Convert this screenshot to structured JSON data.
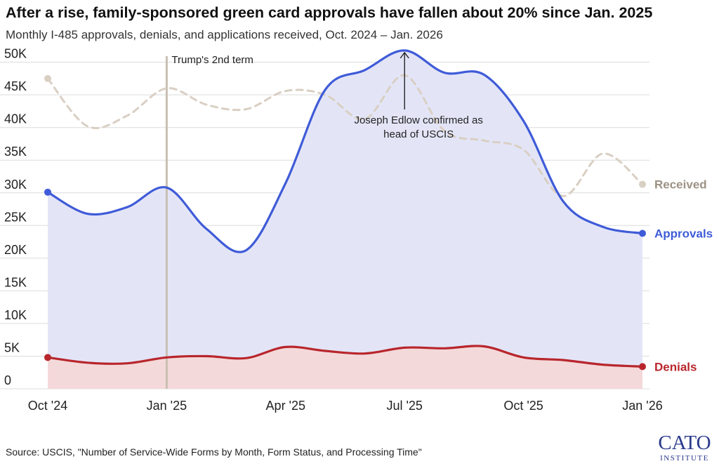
{
  "title": "After a rise, family-sponsored green card approvals have fallen about 20% since Jan. 2025",
  "subtitle": "Monthly I-485 approvals, denials, and applications received, Oct. 2024 – Jan. 2026",
  "source": "Source: USCIS, \"Number of Service-Wide Forms by Month, Form Status, and Processing Time\"",
  "logo": {
    "line1": "CATO",
    "line2": "INSTITUTE",
    "color": "#2b3a8c"
  },
  "chart_data": {
    "type": "line",
    "x": [
      "2024-10",
      "2024-11",
      "2024-12",
      "2025-01",
      "2025-02",
      "2025-03",
      "2025-04",
      "2025-05",
      "2025-06",
      "2025-07",
      "2025-08",
      "2025-09",
      "2025-10",
      "2025-11",
      "2025-12",
      "2026-01"
    ],
    "x_tick_labels": [
      "Oct '24",
      "Jan '25",
      "Apr '25",
      "Jul '25",
      "Oct '25",
      "Jan '26"
    ],
    "x_tick_values": [
      "2024-10",
      "2025-01",
      "2025-04",
      "2025-07",
      "2025-10",
      "2026-01"
    ],
    "y_tick_labels": [
      "0",
      "5K",
      "10K",
      "15K",
      "20K",
      "25K",
      "30K",
      "35K",
      "40K",
      "45K",
      "50K"
    ],
    "y_tick_values": [
      0,
      5000,
      10000,
      15000,
      20000,
      25000,
      30000,
      35000,
      40000,
      45000,
      50000
    ],
    "ylim": [
      0,
      52000
    ],
    "grid": true,
    "series": [
      {
        "name": "Received",
        "color": "#d9cfc3",
        "style": "dashed",
        "values": [
          47500,
          40200,
          41800,
          46000,
          43500,
          42800,
          45600,
          45000,
          41300,
          48000,
          39500,
          38000,
          36600,
          29500,
          36000,
          31300
        ]
      },
      {
        "name": "Approvals",
        "color": "#3f5bd8",
        "style": "solid",
        "fill": "#e3e5f7",
        "values": [
          30100,
          26800,
          27800,
          30800,
          24500,
          21200,
          31500,
          45800,
          48800,
          51800,
          48400,
          48100,
          41000,
          28700,
          24800,
          23800
        ]
      },
      {
        "name": "Denials",
        "color": "#b8262c",
        "style": "solid",
        "fill": "#f4d9da",
        "values": [
          4800,
          4000,
          3900,
          4800,
          5000,
          4700,
          6400,
          5800,
          5400,
          6300,
          6200,
          6500,
          4800,
          4400,
          3700,
          3400
        ]
      }
    ],
    "annotations": [
      {
        "x": "2025-01",
        "text": "Trump's 2nd term",
        "type": "vline",
        "color": "#c9bfb2"
      },
      {
        "x": "2025-07",
        "y": 51800,
        "lines": [
          "Joseph Edlow confirmed as",
          "head of USCIS"
        ],
        "type": "arrow"
      }
    ],
    "legend": "direct-labels-right"
  }
}
